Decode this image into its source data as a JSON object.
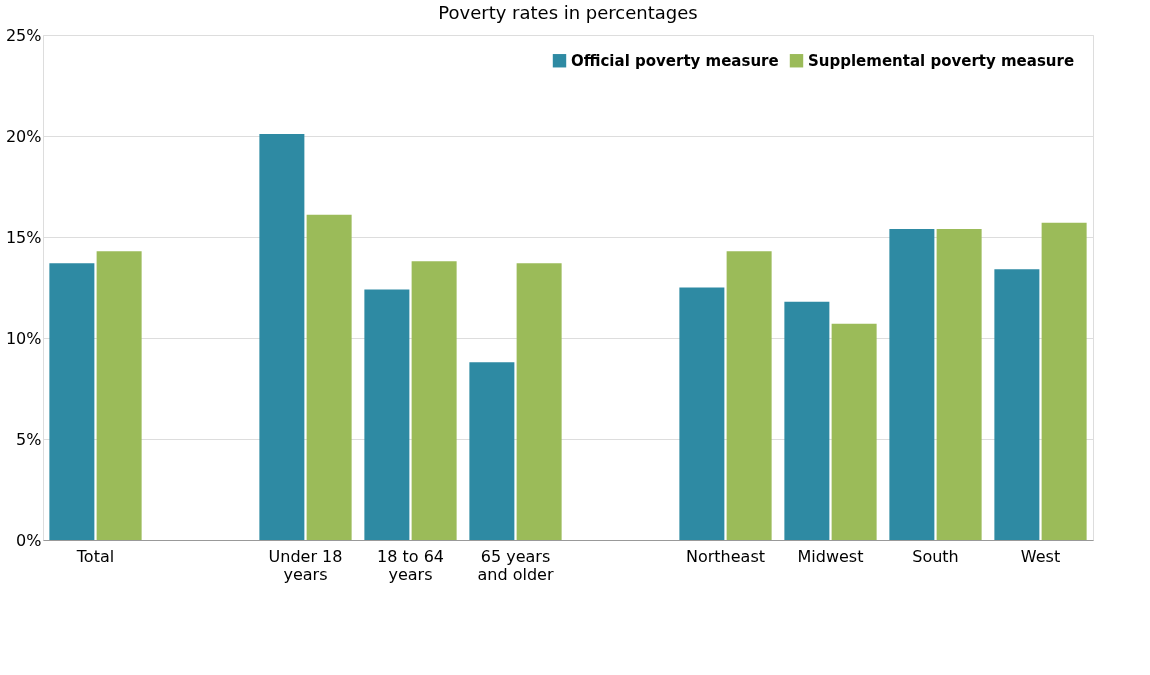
{
  "chart_data": {
    "type": "bar",
    "title": "Poverty rates in percentages",
    "categories": [
      "Total",
      null,
      "Under 18 years",
      "18 to 64 years",
      "65 years and older",
      null,
      "Northeast",
      "Midwest",
      "South",
      "West"
    ],
    "series": [
      {
        "name": "Official poverty measure",
        "color": "#2e8aa3",
        "values": [
          13.7,
          null,
          20.1,
          12.4,
          8.8,
          null,
          12.5,
          11.8,
          15.4,
          13.4
        ]
      },
      {
        "name": "Supplemental poverty measure",
        "color": "#9bbb59",
        "values": [
          14.3,
          null,
          16.1,
          13.8,
          13.7,
          null,
          14.3,
          10.7,
          15.4,
          15.7
        ]
      }
    ],
    "ylim": [
      0,
      25
    ],
    "yticks": [
      {
        "value": 0,
        "label": "0%"
      },
      {
        "value": 5,
        "label": "5%"
      },
      {
        "value": 10,
        "label": "10%"
      },
      {
        "value": 15,
        "label": "15%"
      },
      {
        "value": 20,
        "label": "20%"
      },
      {
        "value": 25,
        "label": "25%"
      }
    ],
    "grid": "y",
    "legend": "top right"
  }
}
